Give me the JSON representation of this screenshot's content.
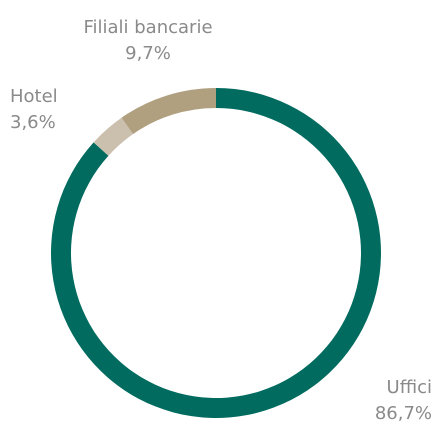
{
  "chart_data": {
    "type": "donut",
    "categories": [
      "Uffici",
      "Hotel",
      "Filiali bancarie"
    ],
    "values": [
      86.7,
      3.6,
      9.7
    ],
    "value_labels": [
      "86,7%",
      "3,6%",
      "9,7%"
    ],
    "colors": [
      "#006b5e",
      "#cbbfae",
      "#b0a080"
    ]
  }
}
